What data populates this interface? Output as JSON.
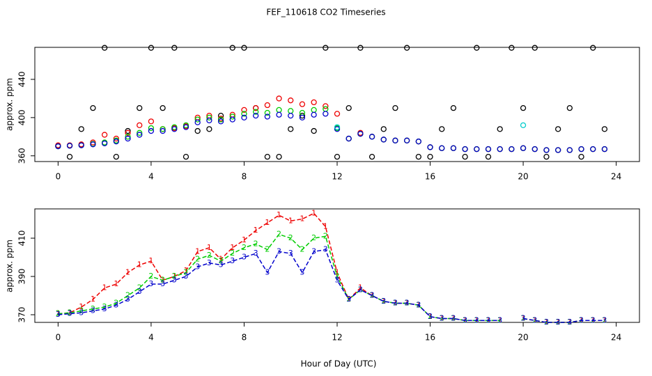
{
  "chart_data": [
    {
      "type": "scatter",
      "title": "FEF_110618  CO2 Timeseries",
      "y_label": "approx. ppm",
      "xlim": [
        -1,
        25
      ],
      "ylim": [
        354,
        473.5
      ],
      "xticks": [
        0,
        4,
        8,
        12,
        16,
        20,
        24
      ],
      "yticks": [
        360,
        400,
        440
      ],
      "x": [
        0,
        0.5,
        1,
        1.5,
        2,
        2.5,
        3,
        3.5,
        4,
        4.5,
        5,
        5.5,
        6,
        6.5,
        7,
        7.5,
        8,
        8.5,
        9,
        9.5,
        10,
        10.5,
        11,
        11.5,
        12,
        12.5,
        13,
        13.5,
        14,
        14.5,
        15,
        15.5,
        16,
        16.5,
        17,
        17.5,
        18,
        18.5,
        19,
        19.5,
        20,
        20.5,
        21,
        21.5,
        22,
        22.5,
        23,
        23.5
      ],
      "series": [
        {
          "color": "#000000",
          "values": [
            370,
            359,
            388,
            410,
            473,
            359,
            386,
            410,
            473,
            410,
            473,
            359,
            386,
            388,
            402,
            473,
            473,
            410,
            359,
            359,
            388,
            402,
            386,
            473,
            359,
            410,
            473,
            359,
            388,
            410,
            473,
            359,
            359,
            388,
            410,
            359,
            473,
            359,
            388,
            473,
            410,
            473,
            359,
            388,
            410,
            359,
            473,
            388
          ]
        },
        {
          "color": "#ee0000",
          "values": [
            371,
            371,
            372,
            374,
            382,
            378,
            384,
            392,
            396,
            388,
            389,
            391,
            400,
            402,
            399,
            403,
            408,
            410,
            413,
            420,
            418,
            414,
            416,
            412,
            404,
            378,
            384,
            380,
            377,
            376,
            376,
            375,
            369,
            368,
            368,
            367,
            367,
            367,
            367,
            367,
            368,
            367,
            366,
            366,
            366,
            367,
            367,
            367
          ]
        },
        {
          "color": "#00cc00",
          "values": [
            370,
            370.5,
            371,
            372.5,
            374,
            376,
            380,
            384,
            389,
            388,
            390,
            392,
            398,
            400,
            398,
            401,
            404,
            406,
            405,
            408,
            407,
            405,
            408,
            409,
            389,
            378,
            383,
            380,
            377,
            376,
            376,
            375,
            369,
            368,
            368,
            367,
            367,
            367,
            367,
            367,
            368,
            367,
            366,
            366,
            366,
            367,
            367,
            367
          ]
        },
        {
          "color": "#0000cc",
          "values": [
            370,
            370.5,
            371,
            372,
            373,
            375,
            378,
            382,
            386,
            386,
            388,
            390,
            395,
            397,
            396,
            398,
            400,
            402,
            401,
            403,
            402,
            400,
            403,
            404,
            388,
            378,
            383,
            380,
            377,
            376,
            376,
            375,
            369,
            368,
            368,
            367,
            367,
            367,
            367,
            367,
            368,
            367,
            366,
            366,
            366,
            367,
            367,
            367
          ]
        },
        {
          "color": "#00cccc",
          "x": [
            12,
            20
          ],
          "values": [
            390,
            392
          ]
        }
      ]
    },
    {
      "type": "line",
      "y_label": "approx. ppm",
      "x_label": "Hour of Day (UTC)",
      "xlim": [
        -1,
        25
      ],
      "ylim": [
        366,
        425.3
      ],
      "xticks": [
        0,
        4,
        8,
        12,
        16,
        20,
        24
      ],
      "yticks": [
        370,
        390,
        410
      ],
      "x": [
        0,
        0.5,
        1,
        1.5,
        2,
        2.5,
        3,
        3.5,
        4,
        4.5,
        5,
        5.5,
        6,
        6.5,
        7,
        7.5,
        8,
        8.5,
        9,
        9.5,
        10,
        10.5,
        11,
        11.5,
        12,
        12.5,
        13,
        13.5,
        14,
        14.5,
        15,
        15.5,
        16,
        16.5,
        17,
        17.5,
        18,
        18.5,
        19,
        19.5,
        20,
        20.5,
        21,
        21.5,
        22,
        22.5,
        23,
        23.5
      ],
      "series": [
        {
          "name": "1",
          "color": "#ee0000",
          "values": [
            370.5,
            371,
            374,
            378,
            384,
            386,
            392,
            396,
            398,
            388,
            390,
            393,
            403,
            405,
            399,
            405,
            409,
            414,
            418,
            422,
            419,
            420,
            423,
            416,
            392,
            378,
            384,
            380,
            377,
            376,
            376,
            375,
            369,
            368,
            368,
            367,
            367,
            367,
            367,
            null,
            368,
            367,
            366,
            366,
            366,
            367,
            367,
            367
          ]
        },
        {
          "name": "2",
          "color": "#00cc00",
          "values": [
            370.5,
            371,
            372,
            373,
            374,
            376,
            380,
            384,
            390,
            388,
            390,
            392,
            399,
            401,
            398,
            402,
            405,
            407,
            404,
            412,
            410,
            404,
            410,
            411,
            390,
            378,
            383,
            380,
            377,
            376,
            376,
            375,
            369,
            368,
            368,
            367,
            367,
            367,
            367,
            null,
            368,
            367,
            366,
            366,
            366,
            367,
            367,
            367
          ]
        },
        {
          "name": "3",
          "color": "#0000cc",
          "values": [
            370,
            370.5,
            371,
            372,
            373,
            375,
            378,
            382,
            386,
            386,
            388,
            390,
            395,
            397,
            396,
            398,
            400,
            402,
            392,
            403,
            402,
            392,
            403,
            404,
            388,
            378,
            383,
            380,
            377,
            376,
            376,
            375,
            369,
            368,
            368,
            367,
            367,
            367,
            367,
            null,
            368,
            367,
            366,
            366,
            366,
            367,
            367,
            367
          ]
        }
      ]
    }
  ]
}
